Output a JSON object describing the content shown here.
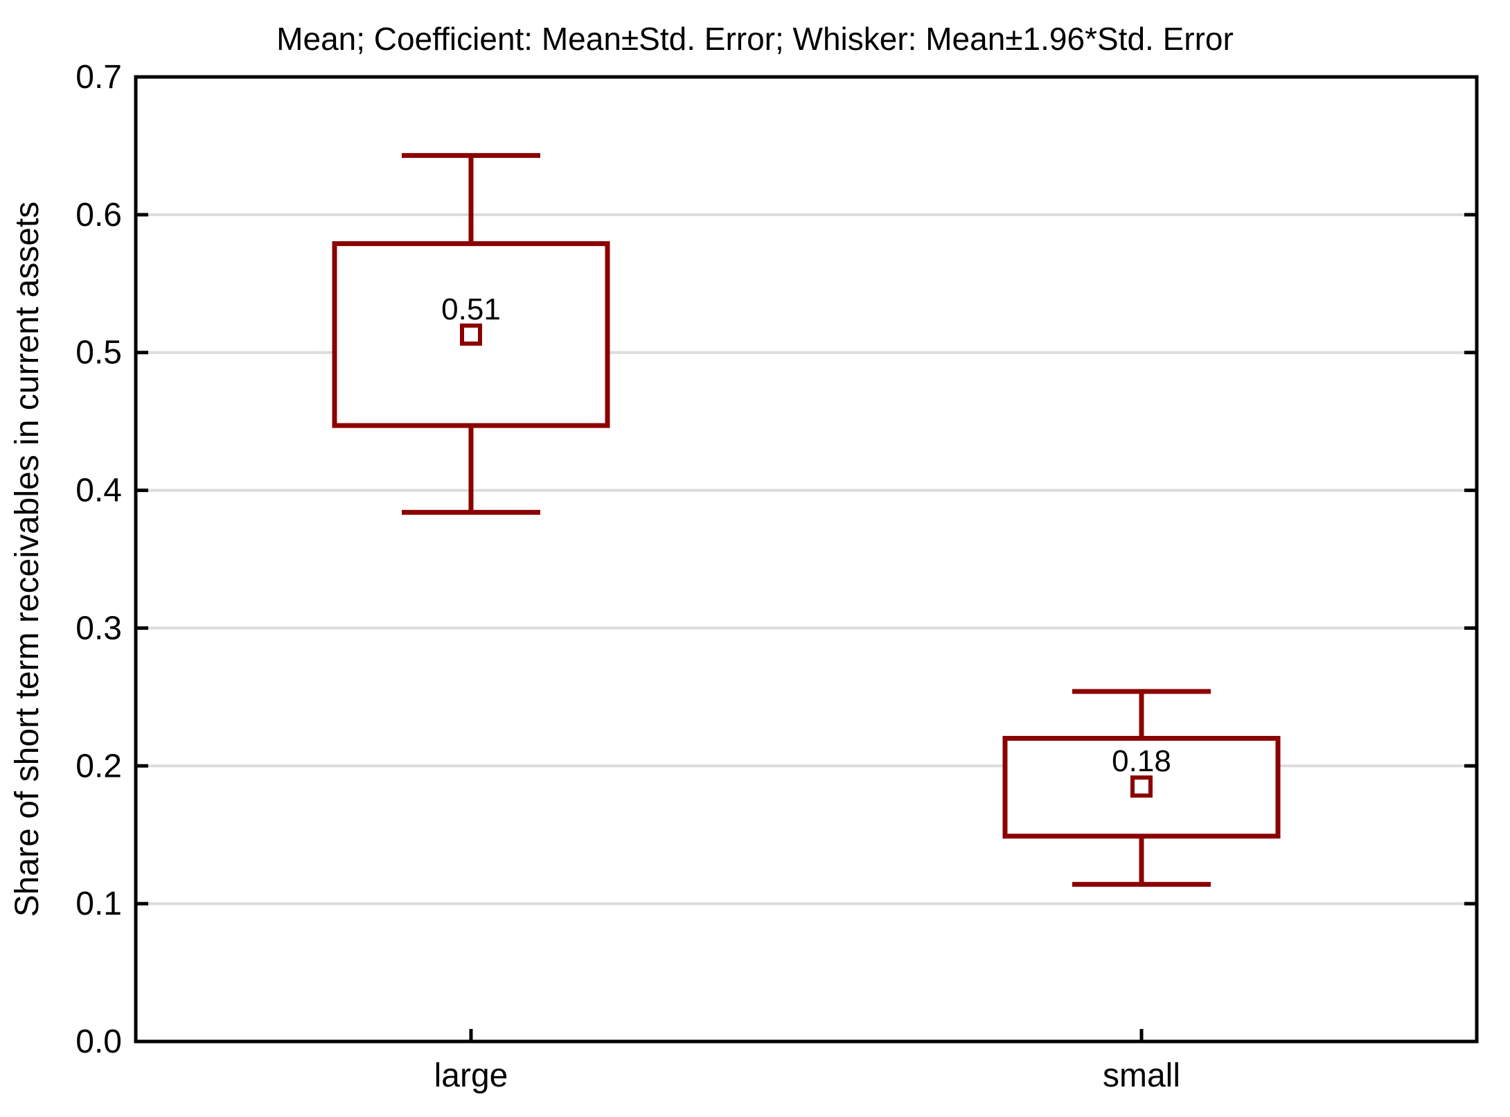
{
  "chart_data": {
    "type": "box",
    "title": "Mean; Coefficient: Mean±Std. Error; Whisker: Mean±1.96*Std. Error",
    "xlabel": "",
    "ylabel": "Share of short term receivables in current assets",
    "ylim": [
      0.0,
      0.7
    ],
    "ytick_step": 0.1,
    "ytick_labels": [
      "0.0",
      "0.1",
      "0.2",
      "0.3",
      "0.4",
      "0.5",
      "0.6",
      "0.7"
    ],
    "categories": [
      "large",
      "small"
    ],
    "grid": "horizontal",
    "legend_position": "none",
    "series": [
      {
        "category": "large",
        "mean": 0.513,
        "mean_label": "0.51",
        "box_low": 0.447,
        "box_high": 0.579,
        "whisker_low": 0.384,
        "whisker_high": 0.643
      },
      {
        "category": "small",
        "mean": 0.185,
        "mean_label": "0.18",
        "box_low": 0.149,
        "box_high": 0.22,
        "whisker_low": 0.114,
        "whisker_high": 0.254
      }
    ],
    "colors": {
      "box_stroke": "#8B0000",
      "box_fill": "#FFFFFF",
      "gridline": "#DCDCDC",
      "axis": "#000000",
      "text": "#000000",
      "background": "#FFFFFF"
    }
  }
}
